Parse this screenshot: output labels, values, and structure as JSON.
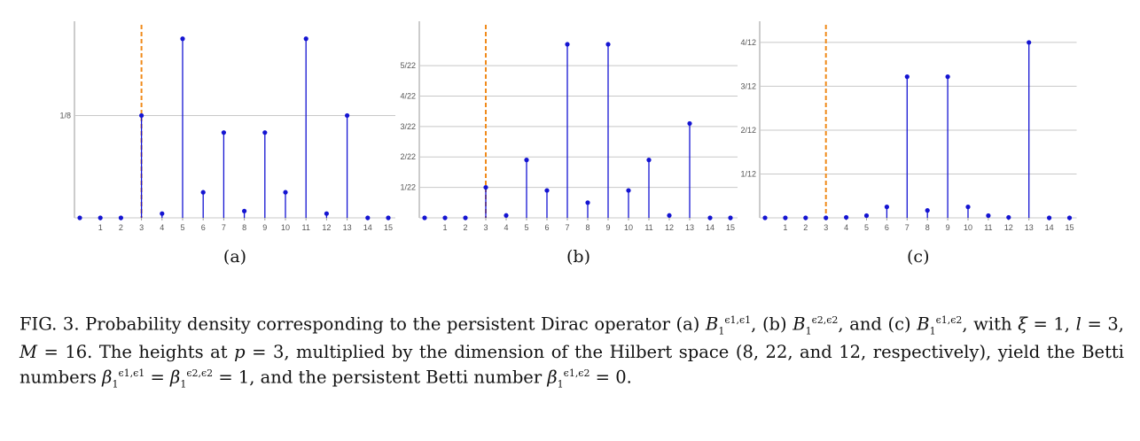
{
  "colors": {
    "stem": "#1414d2",
    "dashed": "#f08a1a",
    "grid": "#c8c8c8",
    "axis": "#999999"
  },
  "chart_data": [
    {
      "type": "stem",
      "label": "(a)",
      "x": [
        0,
        1,
        2,
        3,
        4,
        5,
        6,
        7,
        8,
        9,
        10,
        11,
        12,
        13,
        14,
        15
      ],
      "y": [
        0,
        0,
        0,
        0.125,
        0.0052,
        0.2188,
        0.0312,
        0.1042,
        0.0083,
        0.1042,
        0.0312,
        0.2188,
        0.0052,
        0.125,
        0,
        0
      ],
      "xticks": [
        "1",
        "2",
        "3",
        "4",
        "5",
        "6",
        "7",
        "8",
        "9",
        "10",
        "11",
        "12",
        "13",
        "14",
        "15"
      ],
      "yticks": [
        {
          "value": 0.125,
          "label": "1/8"
        }
      ],
      "ylim": [
        0,
        0.225
      ],
      "marker_x": 3
    },
    {
      "type": "stem",
      "label": "(b)",
      "x": [
        0,
        1,
        2,
        3,
        4,
        5,
        6,
        7,
        8,
        9,
        10,
        11,
        12,
        13,
        14,
        15
      ],
      "y": [
        0,
        0,
        0,
        0.0455,
        0.0036,
        0.0864,
        0.0409,
        0.2591,
        0.0227,
        0.2591,
        0.0409,
        0.0864,
        0.0036,
        0.1409,
        0,
        0
      ],
      "xticks": [
        "1",
        "2",
        "3",
        "4",
        "5",
        "6",
        "7",
        "8",
        "9",
        "10",
        "11",
        "12",
        "13",
        "14",
        "15"
      ],
      "yticks": [
        {
          "value": 0.04545,
          "label": "1/22"
        },
        {
          "value": 0.09091,
          "label": "2/22"
        },
        {
          "value": 0.13636,
          "label": "3/22"
        },
        {
          "value": 0.18182,
          "label": "4/22"
        },
        {
          "value": 0.22727,
          "label": "5/22"
        }
      ],
      "ylim": [
        0,
        0.275
      ],
      "marker_x": 3
    },
    {
      "type": "stem",
      "label": "(c)",
      "x": [
        0,
        1,
        2,
        3,
        4,
        5,
        6,
        7,
        8,
        9,
        10,
        11,
        12,
        13,
        14,
        15
      ],
      "y": [
        0,
        0,
        0,
        0,
        0.0009,
        0.0042,
        0.0208,
        0.2682,
        0.0141,
        0.2682,
        0.0208,
        0.0042,
        0.0009,
        0.3333,
        0,
        0
      ],
      "xticks": [
        "1",
        "2",
        "3",
        "4",
        "5",
        "6",
        "7",
        "8",
        "9",
        "10",
        "11",
        "12",
        "13",
        "14",
        "15"
      ],
      "yticks": [
        {
          "value": 0.08333,
          "label": "1/12"
        },
        {
          "value": 0.16667,
          "label": "2/12"
        },
        {
          "value": 0.25,
          "label": "3/12"
        },
        {
          "value": 0.33333,
          "label": "4/12"
        }
      ],
      "ylim": [
        0,
        0.35
      ],
      "marker_x": 3
    }
  ],
  "caption": {
    "fig_label": "FIG. 3.",
    "t1": " Probability density corresponding to the persistent Dirac operator (a) ",
    "t2": ", (b) ",
    "t3": ", and (c) ",
    "t4": ", with ",
    "t5": " = 1, ",
    "t6": " = 3, ",
    "t7": " = 16. The heights at ",
    "t8": " = 3, multiplied by the dimension of the Hilbert space (8, 22, and 12, respectively), yield the Betti numbers ",
    "t9": " = ",
    "t10": " = 1, and the persistent Betti number ",
    "t11": " = 0.",
    "B": "B",
    "beta": "β",
    "xi": "ξ",
    "l": "l",
    "M": "M",
    "p": "p",
    "sub1": "1",
    "sup11": "ϵ1,ϵ1",
    "sup22": "ϵ2,ϵ2",
    "sup12": "ϵ1,ϵ2"
  }
}
